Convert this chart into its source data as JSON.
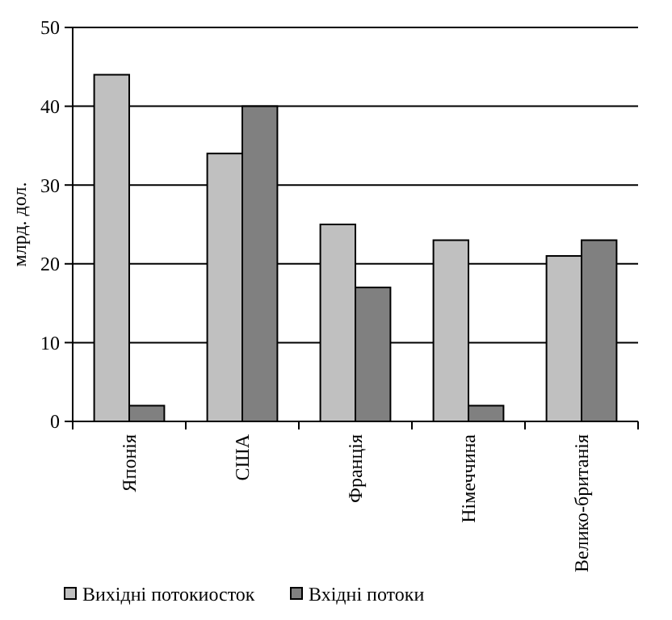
{
  "chart_data": {
    "type": "bar",
    "ylabel": "млрд. дол.",
    "categories": [
      "Японія",
      "США",
      "Франція",
      "Німеччина",
      "Велико-британія"
    ],
    "series": [
      {
        "name": "Вихідні потокиосток",
        "color": "#c0c0c0",
        "values": [
          44,
          34,
          25,
          23,
          21
        ]
      },
      {
        "name": "Вхідні потоки",
        "color": "#808080",
        "values": [
          2,
          40,
          17,
          2,
          23
        ]
      }
    ],
    "ylim": [
      0,
      50
    ],
    "yticks": [
      0,
      10,
      20,
      30,
      40,
      50
    ],
    "grid": "y",
    "legend": "bottom"
  }
}
